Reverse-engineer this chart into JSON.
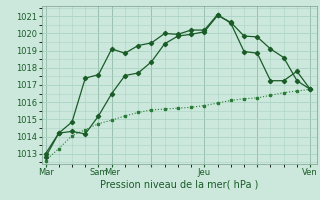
{
  "xlabel": "Pression niveau de la mer( hPa )",
  "bg_color": "#cce8dc",
  "grid_color": "#aad4c4",
  "line_dark": "#1a6b2a",
  "line_light": "#2d8a3e",
  "ylim": [
    1012.4,
    1021.6
  ],
  "yticks": [
    1013,
    1014,
    1015,
    1016,
    1017,
    1018,
    1019,
    1020,
    1021
  ],
  "xlim": [
    -0.3,
    20.5
  ],
  "xtick_pos": [
    0,
    4,
    5,
    8,
    12,
    16,
    20
  ],
  "xtick_labels": [
    "Mar",
    "Sam",
    "Mer",
    "Jeu",
    "Ven"
  ],
  "xtick_day_pos": [
    0,
    4.5,
    8,
    12,
    16,
    20
  ],
  "vline_x": [
    0,
    4,
    5,
    8,
    12,
    16,
    20
  ],
  "series1_x": [
    0,
    1,
    2,
    3,
    4,
    5,
    6,
    7,
    8,
    9,
    10,
    11,
    12,
    13,
    14,
    15,
    16,
    17,
    18,
    19,
    20
  ],
  "series1_y": [
    1012.8,
    1014.2,
    1014.3,
    1014.15,
    1015.2,
    1016.5,
    1017.55,
    1017.7,
    1018.35,
    1019.4,
    1019.85,
    1019.95,
    1020.1,
    1021.05,
    1020.65,
    1019.85,
    1019.8,
    1019.1,
    1018.6,
    1017.25,
    1016.75
  ],
  "series2_x": [
    0,
    1,
    2,
    3,
    4,
    5,
    6,
    7,
    8,
    9,
    10,
    11,
    12,
    13,
    14,
    15,
    16,
    17,
    18,
    19,
    20
  ],
  "series2_y": [
    1013.0,
    1014.2,
    1014.85,
    1017.4,
    1017.6,
    1019.1,
    1018.85,
    1019.3,
    1019.45,
    1020.0,
    1019.95,
    1020.2,
    1020.2,
    1021.1,
    1020.6,
    1018.95,
    1018.85,
    1017.25,
    1017.25,
    1017.8,
    1016.75
  ],
  "series3_x": [
    0,
    1,
    2,
    3,
    4,
    5,
    6,
    7,
    8,
    9,
    10,
    11,
    12,
    13,
    14,
    15,
    16,
    17,
    18,
    19,
    20
  ],
  "series3_y": [
    1012.6,
    1013.3,
    1014.05,
    1014.4,
    1014.75,
    1014.95,
    1015.2,
    1015.4,
    1015.55,
    1015.6,
    1015.65,
    1015.7,
    1015.8,
    1015.95,
    1016.1,
    1016.2,
    1016.25,
    1016.4,
    1016.55,
    1016.65,
    1016.75
  ]
}
